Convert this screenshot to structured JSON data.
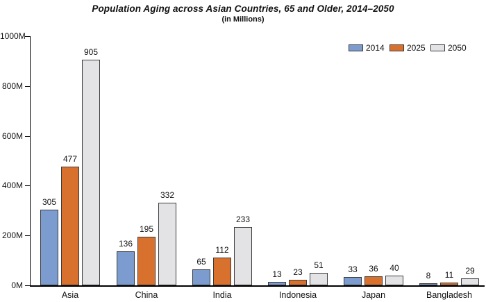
{
  "chart": {
    "title": "Population Aging across Asian Countries, 65 and Older, 2014–2050",
    "subtitle": "(in Millions)"
  },
  "chart_data": {
    "type": "bar",
    "title": "Population Aging across Asian Countries, 65 and Older, 2014–2050",
    "subtitle": "(in Millions)",
    "categories": [
      "Asia",
      "China",
      "India",
      "Indonesia",
      "Japan",
      "Bangladesh"
    ],
    "series": [
      {
        "name": "2014",
        "color": "#7C9BCE",
        "values": [
          305,
          136,
          65,
          13,
          33,
          8
        ]
      },
      {
        "name": "2025",
        "color": "#D9712E",
        "values": [
          477,
          195,
          112,
          23,
          36,
          11
        ]
      },
      {
        "name": "2050",
        "color": "#E3E3E5",
        "values": [
          905,
          332,
          233,
          51,
          40,
          29
        ]
      }
    ],
    "xlabel": "",
    "ylabel": "",
    "ylim": [
      0,
      1000
    ],
    "ytick_interval": 200,
    "ytick_labels": [
      "0M",
      "200M",
      "400M",
      "600M",
      "800M",
      "1000M"
    ],
    "grid": false,
    "legend_position": "top-right",
    "bar_border_color": "#3a3a3a",
    "data_labels_shown": true
  }
}
